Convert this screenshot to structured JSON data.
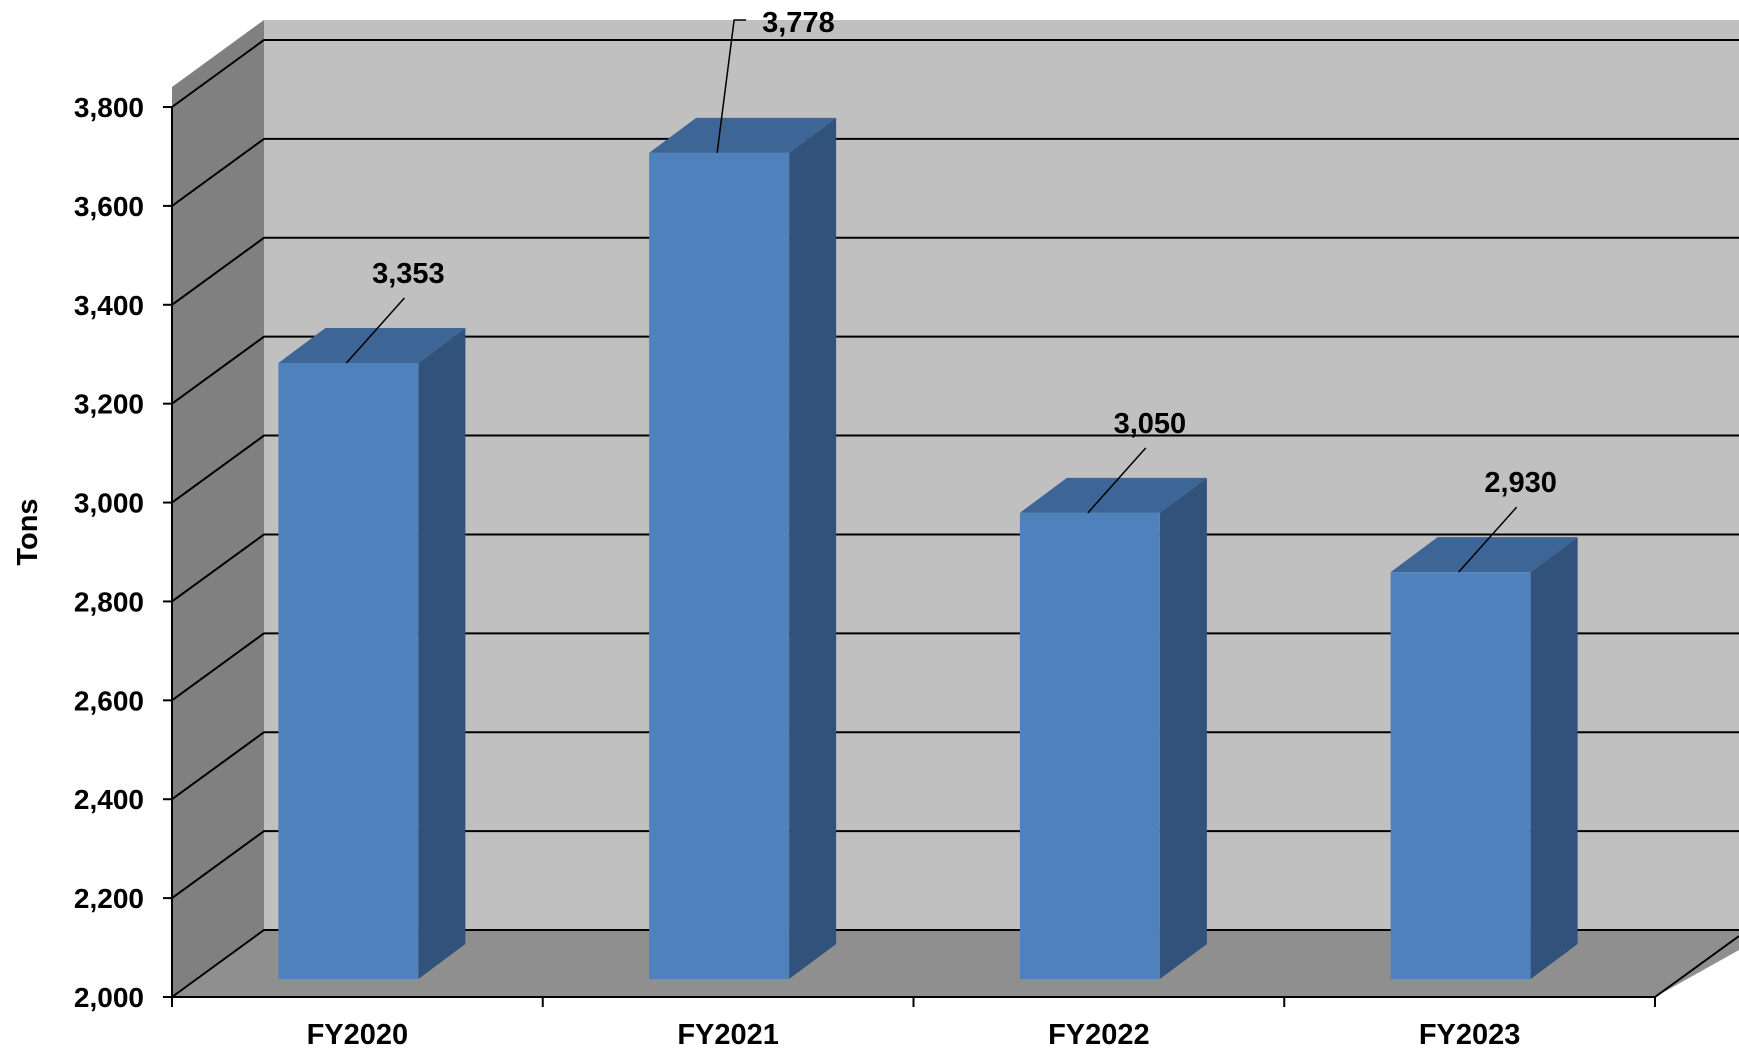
{
  "chart_data": {
    "type": "bar",
    "categories": [
      "FY2020",
      "FY2021",
      "FY2022",
      "FY2023"
    ],
    "values": [
      3353,
      3778,
      3050,
      2930
    ],
    "data_labels": [
      "3,353",
      "3,778",
      "3,050",
      "2,930"
    ],
    "ylabel": "Tons",
    "ylim": [
      2000,
      3800
    ],
    "yticks": [
      2000,
      2200,
      2400,
      2600,
      2800,
      3000,
      3200,
      3400,
      3600,
      3800
    ],
    "ytick_labels": [
      "2,000",
      "2,200",
      "2,400",
      "2,600",
      "2,800",
      "3,000",
      "3,200",
      "3,400",
      "3,600",
      "3,800"
    ],
    "grid": true,
    "three_d": true,
    "colors": {
      "bar_front": "#4f81bd",
      "bar_top": "#3d6595",
      "bar_side": "#31527a",
      "back_wall": "#c0c0c0",
      "side_wall": "#808080",
      "floor": "#8f8f8f",
      "gridline": "#000000"
    }
  }
}
